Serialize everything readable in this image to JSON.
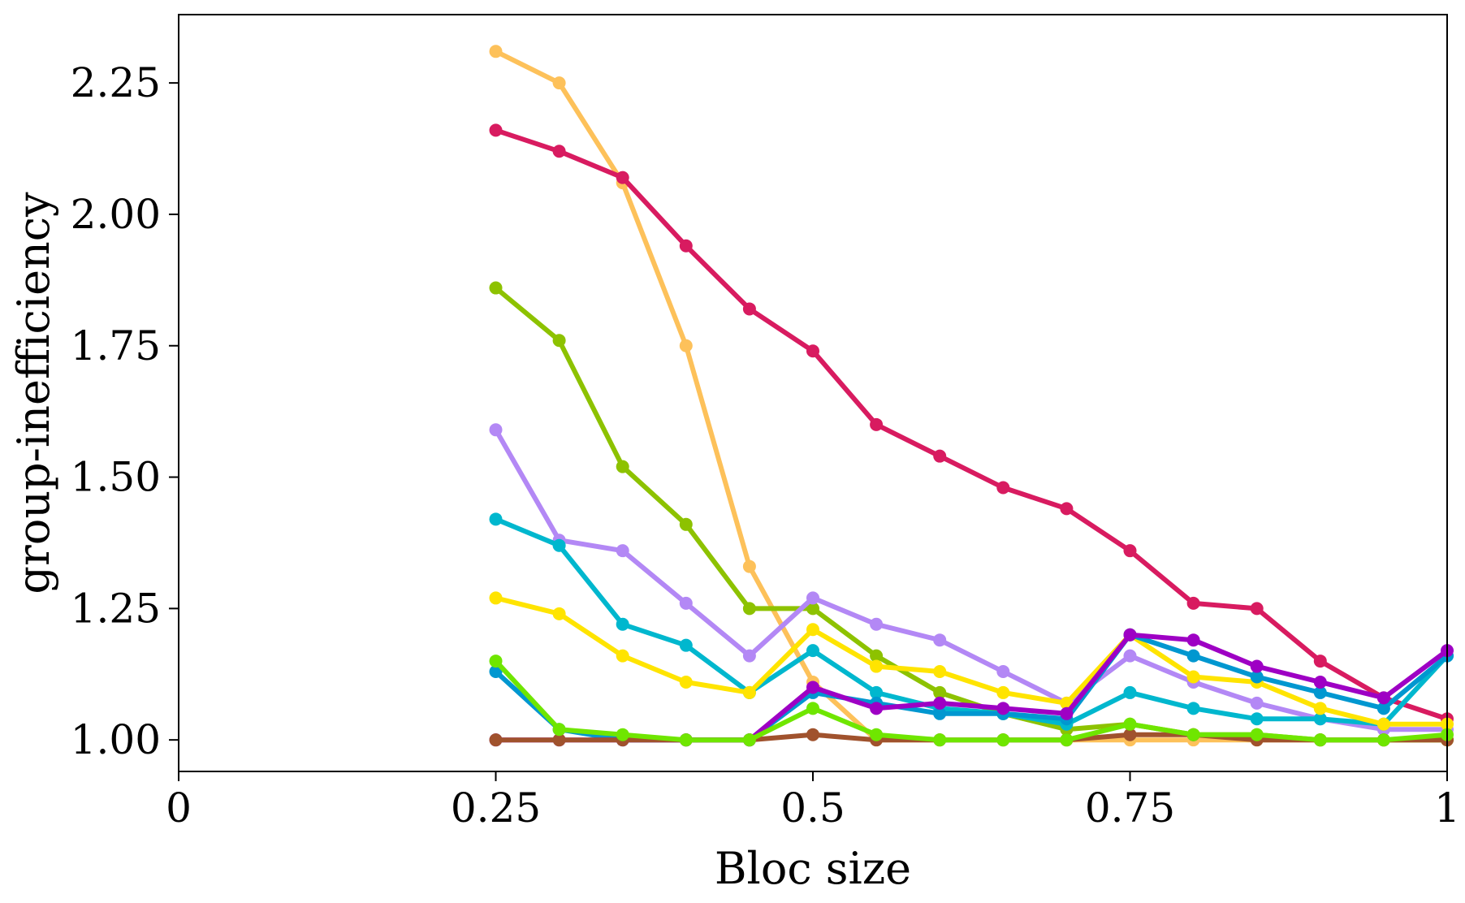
{
  "chart_data": {
    "type": "line",
    "title": "",
    "xlabel": "Bloc size",
    "ylabel": "group-inefficiency",
    "xlim": [
      0,
      1
    ],
    "ylim": [
      0.94,
      2.38
    ],
    "xticks": [
      0,
      0.25,
      0.5,
      0.75,
      1
    ],
    "xtick_labels": [
      "0",
      "0.25",
      "0.5",
      "0.75",
      "1"
    ],
    "yticks": [
      1.0,
      1.25,
      1.5,
      1.75,
      2.0,
      2.25
    ],
    "ytick_labels": [
      "1.00",
      "1.25",
      "1.50",
      "1.75",
      "2.00",
      "2.25"
    ],
    "grid": false,
    "legend": "none",
    "x": [
      0.25,
      0.3,
      0.35,
      0.4,
      0.45,
      0.5,
      0.55,
      0.6,
      0.65,
      0.7,
      0.75,
      0.8,
      0.85,
      0.9,
      0.95,
      1.0
    ],
    "series": [
      {
        "color": "#FDC15A",
        "values": [
          2.31,
          2.25,
          2.06,
          1.75,
          1.33,
          1.11,
          1.0,
          1.0,
          1.0,
          1.0,
          1.0,
          1.0,
          1.0,
          1.0,
          1.0,
          1.0
        ]
      },
      {
        "color": "#D81B60",
        "values": [
          2.16,
          2.12,
          2.07,
          1.94,
          1.82,
          1.74,
          1.6,
          1.54,
          1.48,
          1.44,
          1.36,
          1.26,
          1.25,
          1.15,
          1.08,
          1.04
        ]
      },
      {
        "color": "#8DC200",
        "values": [
          1.86,
          1.76,
          1.52,
          1.41,
          1.25,
          1.25,
          1.16,
          1.09,
          1.05,
          1.02,
          1.03,
          1.01,
          1.01,
          1.0,
          1.0,
          1.0
        ]
      },
      {
        "color": "#B388F5",
        "values": [
          1.59,
          1.38,
          1.36,
          1.26,
          1.16,
          1.27,
          1.22,
          1.19,
          1.13,
          1.07,
          1.16,
          1.11,
          1.07,
          1.04,
          1.02,
          1.02
        ]
      },
      {
        "color": "#00B7CE",
        "values": [
          1.42,
          1.37,
          1.22,
          1.18,
          1.09,
          1.17,
          1.09,
          1.06,
          1.05,
          1.03,
          1.09,
          1.06,
          1.04,
          1.04,
          1.03,
          1.16
        ]
      },
      {
        "color": "#FFE400",
        "values": [
          1.27,
          1.24,
          1.16,
          1.11,
          1.09,
          1.21,
          1.14,
          1.13,
          1.09,
          1.07,
          1.2,
          1.12,
          1.11,
          1.06,
          1.03,
          1.03
        ]
      },
      {
        "color": "#0097D0",
        "values": [
          1.13,
          1.02,
          1.0,
          1.0,
          1.0,
          1.09,
          1.07,
          1.05,
          1.05,
          1.04,
          1.2,
          1.16,
          1.12,
          1.09,
          1.06,
          1.16
        ]
      },
      {
        "color": "#9E00C4",
        "values": [
          1.0,
          1.0,
          1.0,
          1.0,
          1.0,
          1.1,
          1.06,
          1.07,
          1.06,
          1.05,
          1.2,
          1.19,
          1.14,
          1.11,
          1.08,
          1.17
        ]
      },
      {
        "color": "#A0522D",
        "values": [
          1.0,
          1.0,
          1.0,
          1.0,
          1.0,
          1.01,
          1.0,
          1.0,
          1.0,
          1.0,
          1.01,
          1.01,
          1.0,
          1.0,
          1.0,
          1.0
        ]
      },
      {
        "color": "#6FE600",
        "values": [
          1.15,
          1.02,
          1.01,
          1.0,
          1.0,
          1.06,
          1.01,
          1.0,
          1.0,
          1.0,
          1.03,
          1.01,
          1.01,
          1.0,
          1.0,
          1.01
        ]
      }
    ]
  }
}
